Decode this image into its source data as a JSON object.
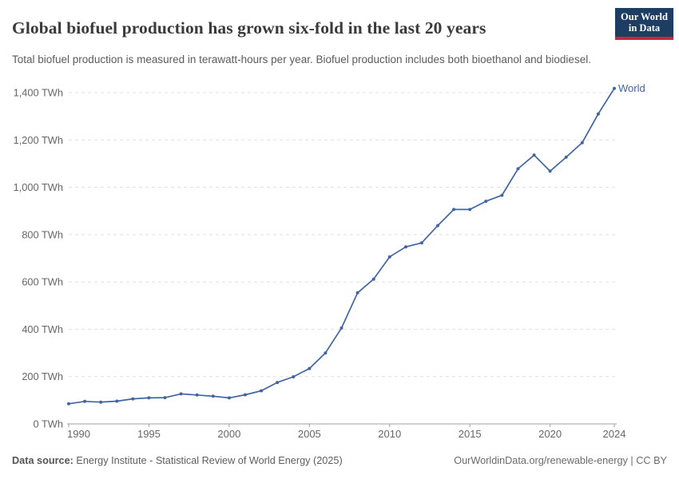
{
  "header": {
    "title": "Global biofuel production has grown six-fold in the last 20 years",
    "subtitle": "Total biofuel production is measured in terawatt-hours per year. Biofuel production includes both bioethanol and biodiesel.",
    "logo": {
      "line1": "Our World",
      "line2": "in Data",
      "bg_color": "#1d3d63",
      "accent_color": "#c2293a"
    }
  },
  "chart_data": {
    "type": "line",
    "unit": "TWh",
    "xlim": [
      1990,
      2024
    ],
    "ylim": [
      0,
      1400
    ],
    "grid": "horizontal-dashed",
    "legend": "end-of-line-label",
    "x": [
      1990,
      1991,
      1992,
      1993,
      1994,
      1995,
      1996,
      1997,
      1998,
      1999,
      2000,
      2001,
      2002,
      2003,
      2004,
      2005,
      2006,
      2007,
      2008,
      2009,
      2010,
      2011,
      2012,
      2013,
      2014,
      2015,
      2016,
      2017,
      2018,
      2019,
      2020,
      2021,
      2022,
      2023,
      2024
    ],
    "series": [
      {
        "name": "World",
        "color": "#4064a4",
        "values": [
          85,
          95,
          92,
          96,
          106,
          110,
          111,
          127,
          122,
          117,
          110,
          123,
          140,
          175,
          199,
          234,
          300,
          405,
          554,
          612,
          706,
          748,
          765,
          838,
          906,
          906,
          941,
          966,
          1078,
          1136,
          1068,
          1127,
          1188,
          1310,
          1418
        ]
      }
    ],
    "x_ticks": [
      1990,
      1995,
      2000,
      2005,
      2010,
      2015,
      2020,
      2024
    ],
    "y_ticks": [
      {
        "value": 0,
        "label": "0 TWh"
      },
      {
        "value": 200,
        "label": "200 TWh"
      },
      {
        "value": 400,
        "label": "400 TWh"
      },
      {
        "value": 600,
        "label": "600 TWh"
      },
      {
        "value": 800,
        "label": "800 TWh"
      },
      {
        "value": 1000,
        "label": "1,000 TWh"
      },
      {
        "value": 1200,
        "label": "1,200 TWh"
      },
      {
        "value": 1400,
        "label": "1,400 TWh"
      }
    ],
    "colors": {
      "gridline": "#e0e0e0",
      "axis": "#a1a1a1",
      "tick_text": "#666666"
    }
  },
  "footer": {
    "source_label": "Data source:",
    "source_text": " Energy Institute - Statistical Review of World Energy (2025)",
    "link_text": "OurWorldinData.org/renewable-energy | CC BY"
  }
}
